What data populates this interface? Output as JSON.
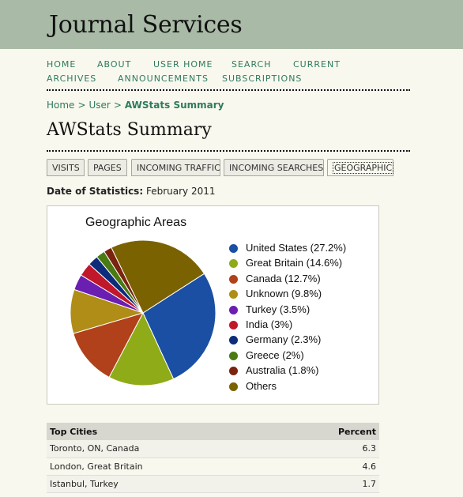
{
  "site": {
    "title": "Journal Services"
  },
  "nav": {
    "items": [
      {
        "label": "HOME"
      },
      {
        "label": "ABOUT"
      },
      {
        "label": "USER HOME"
      },
      {
        "label": "SEARCH"
      },
      {
        "label": "CURRENT"
      },
      {
        "label": "ARCHIVES"
      },
      {
        "label": "ANNOUNCEMENTS"
      },
      {
        "label": "SUBSCRIPTIONS"
      }
    ]
  },
  "breadcrumb": {
    "home": "Home",
    "user": "User",
    "current": "AWStats Summary",
    "separator": ">"
  },
  "page": {
    "title": "AWStats Summary"
  },
  "tabs": [
    {
      "label": "VISITS"
    },
    {
      "label": "PAGES"
    },
    {
      "label": "INCOMING TRAFFIC"
    },
    {
      "label": "INCOMING SEARCHES"
    },
    {
      "label": "GEOGRAPHIC"
    }
  ],
  "stats": {
    "date_label": "Date of Statistics:",
    "date_value": "February 2011"
  },
  "chart_data": {
    "type": "pie",
    "title": "Geographic Areas",
    "legend_position": "right",
    "slices": [
      {
        "label": "United States (27.2%)",
        "value": 27.2,
        "color": "#1a4fa3"
      },
      {
        "label": "Great Britain (14.6%)",
        "value": 14.6,
        "color": "#8fab17"
      },
      {
        "label": "Canada (12.7%)",
        "value": 12.7,
        "color": "#b0411a"
      },
      {
        "label": "Unknown (9.8%)",
        "value": 9.8,
        "color": "#b08d17"
      },
      {
        "label": "Turkey (3.5%)",
        "value": 3.5,
        "color": "#6a1fb0"
      },
      {
        "label": "India (3%)",
        "value": 3.0,
        "color": "#c0172b"
      },
      {
        "label": "Germany (2.3%)",
        "value": 2.3,
        "color": "#0d2c7a"
      },
      {
        "label": "Greece (2%)",
        "value": 2.0,
        "color": "#4a7a12"
      },
      {
        "label": "Australia (1.8%)",
        "value": 1.8,
        "color": "#7a2410"
      },
      {
        "label": "Others",
        "value": 23.1,
        "color": "#7a6200"
      }
    ]
  },
  "cities_table": {
    "headers": {
      "city": "Top Cities",
      "percent": "Percent"
    },
    "rows": [
      {
        "city": "Toronto, ON, Canada",
        "percent": "6.3"
      },
      {
        "city": "London, Great Britain",
        "percent": "4.6"
      },
      {
        "city": "Istanbul, Turkey",
        "percent": "1.7"
      }
    ]
  }
}
